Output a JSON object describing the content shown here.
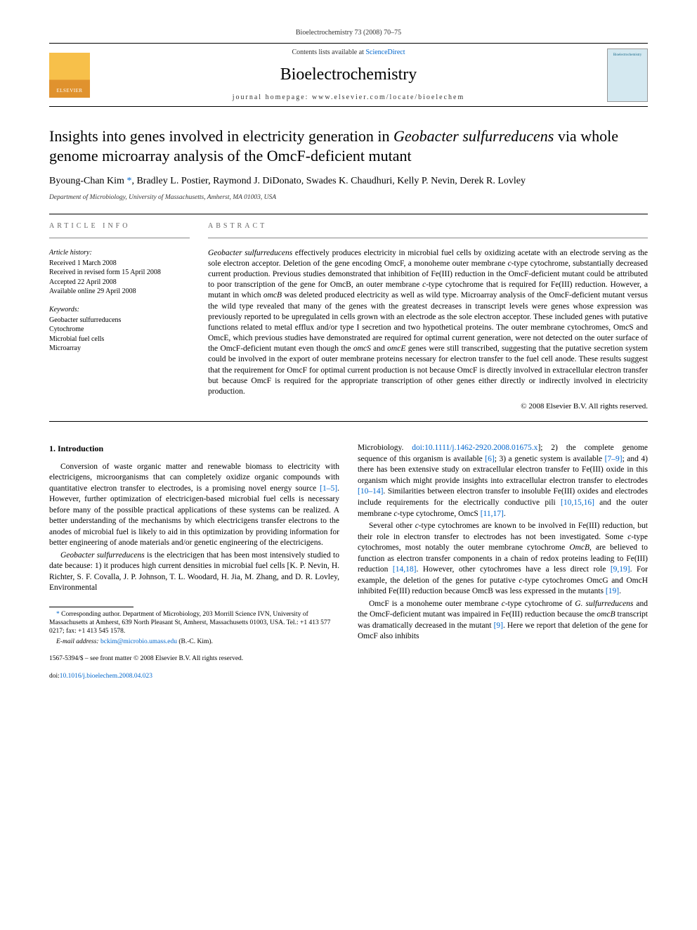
{
  "header": {
    "running_head": "Bioelectrochemistry 73 (2008) 70–75"
  },
  "banner": {
    "elsevier_label": "ELSEVIER",
    "contents_line_prefix": "Contents lists available at ",
    "contents_link_text": "ScienceDirect",
    "journal_name": "Bioelectrochemistry",
    "homepage_prefix": "journal homepage: ",
    "homepage_url": "www.elsevier.com/locate/bioelechem",
    "cover_label": "Bioelectrochemistry"
  },
  "title": {
    "line": "Insights into genes involved in electricity generation in Geobacter sulfurreducens via whole genome microarray analysis of the OmcF-deficient mutant",
    "italic_phrase": "Geobacter sulfurreducens"
  },
  "authors": {
    "list": "Byoung-Chan Kim *, Bradley L. Postier, Raymond J. DiDonato, Swades K. Chaudhuri, Kelly P. Nevin, Derek R. Lovley",
    "corr_symbol": "*"
  },
  "affiliation": "Department of Microbiology, University of Massachusetts, Amherst, MA 01003, USA",
  "article_info": {
    "heading": "ARTICLE INFO",
    "history_label": "Article history:",
    "history": [
      "Received 1 March 2008",
      "Received in revised form 15 April 2008",
      "Accepted 22 April 2008",
      "Available online 29 April 2008"
    ],
    "keywords_label": "Keywords:",
    "keywords": [
      "Geobacter sulfurreducens",
      "Cytochrome",
      "Microbial fuel cells",
      "Microarray"
    ]
  },
  "abstract": {
    "heading": "ABSTRACT",
    "text_parts": [
      "Geobacter sulfurreducens",
      " effectively produces electricity in microbial fuel cells by oxidizing acetate with an electrode serving as the sole electron acceptor. Deletion of the gene encoding OmcF, a monoheme outer membrane ",
      "c",
      "-type cytochrome, substantially decreased current production. Previous studies demonstrated that inhibition of Fe(III) reduction in the OmcF-deficient mutant could be attributed to poor transcription of the gene for OmcB, an outer membrane ",
      "c",
      "-type cytochrome that is required for Fe(III) reduction. However, a mutant in which ",
      "omcB",
      " was deleted produced electricity as well as wild type. Microarray analysis of the OmcF-deficient mutant versus the wild type revealed that many of the genes with the greatest decreases in transcript levels were genes whose expression was previously reported to be upregulated in cells grown with an electrode as the sole electron acceptor. These included genes with putative functions related to metal efflux and/or type I secretion and two hypothetical proteins. The outer membrane cytochromes, OmcS and OmcE, which previous studies have demonstrated are required for optimal current generation, were not detected on the outer surface of the OmcF-deficient mutant even though the ",
      "omcS",
      " and ",
      "omcE",
      " genes were still transcribed, suggesting that the putative secretion system could be involved in the export of outer membrane proteins necessary for electron transfer to the fuel cell anode. These results suggest that the requirement for OmcF for optimal current production is not because OmcF is directly involved in extracellular electron transfer but because OmcF is required for the appropriate transcription of other genes either directly or indirectly involved in electricity production."
    ],
    "copyright": "© 2008 Elsevier B.V. All rights reserved."
  },
  "body": {
    "section_heading": "1. Introduction",
    "col1": {
      "p1_prefix": "Conversion of waste organic matter and renewable biomass to electricity with electricigens, microorganisms that can completely oxidize organic compounds with quantitative electron transfer to electrodes, is a promising novel energy source ",
      "p1_ref1": "[1–5]",
      "p1_suffix": ". However, further optimization of electricigen-based microbial fuel cells is necessary before many of the possible practical applications of these systems can be realized. A better understanding of the mechanisms by which electricigens transfer electrons to the anodes of microbial fuel is likely to aid in this optimization by providing information for better engineering of anode materials and/or genetic engineering of the electricigens.",
      "p2_italic": "Geobacter sulfurreducens",
      "p2_text": " is the electricigen that has been most intensively studied to date because: 1) it produces high current densities in microbial fuel cells [K. P. Nevin, H. Richter, S. F. Covalla, J. P. Johnson, T. L. Woodard, H. Jia, M. Zhang, and D. R. Lovley, Environmental"
    },
    "col2": {
      "p1_prefix": "Microbiology. ",
      "p1_doi": "doi:10.1111/j.1462-2920.2008.01675.x",
      "p1_mid1": "]; 2) the complete genome sequence of this organism is available ",
      "p1_ref1": "[6]",
      "p1_mid2": "; 3) a genetic system is available ",
      "p1_ref2": "[7–9]",
      "p1_mid3": "; and 4) there has been extensive study on extracellular electron transfer to Fe(III) oxide in this organism which might provide insights into extracellular electron transfer to electrodes ",
      "p1_ref3": "[10–14]",
      "p1_mid4": ". Similarities between electron transfer to insoluble Fe(III) oxides and electrodes include requirements for the electrically conductive pili ",
      "p1_ref4": "[10,15,16]",
      "p1_mid5": " and the outer membrane ",
      "p1_italic1": "c",
      "p1_mid6": "-type cytochrome, OmcS ",
      "p1_ref5": "[11,17]",
      "p1_suffix": ".",
      "p2_prefix": "Several other ",
      "p2_italic1": "c",
      "p2_mid1": "-type cytochromes are known to be involved in Fe(III) reduction, but their role in electron transfer to electrodes has not been investigated. Some ",
      "p2_italic2": "c",
      "p2_mid2": "-type cytochromes, most notably the outer membrane cytochrome ",
      "p2_italic3": "OmcB",
      "p2_mid3": ", are believed to function as electron transfer components in a chain of redox proteins leading to Fe(III) reduction ",
      "p2_ref1": "[14,18]",
      "p2_mid4": ". However, other cytochromes have a less direct role ",
      "p2_ref2": "[9,19]",
      "p2_mid5": ". For example, the deletion of the genes for putative ",
      "p2_italic4": "c",
      "p2_mid6": "-type cytochromes OmcG and OmcH inhibited Fe(III) reduction because OmcB was less expressed in the mutants ",
      "p2_ref3": "[19]",
      "p2_suffix": ".",
      "p3_prefix": "OmcF is a monoheme outer membrane ",
      "p3_italic1": "c",
      "p3_mid1": "-type cytochrome of ",
      "p3_italic2": "G. sulfurreducens",
      "p3_mid2": " and the OmcF-deficient mutant was impaired in Fe(III) reduction because the ",
      "p3_italic3": "omcB",
      "p3_mid3": " transcript was dramatically decreased in the mutant ",
      "p3_ref1": "[9]",
      "p3_suffix": ". Here we report that deletion of the gene for OmcF also inhibits"
    }
  },
  "footnotes": {
    "corr_symbol": "*",
    "corr_text": " Corresponding author. Department of Microbiology, 203 Morrill Science IVN, University of Massachusetts at Amherst, 639 North Pleasant St, Amherst, Massachusetts 01003, USA. Tel.: +1 413 577 0217; fax: +1 413 545 1578.",
    "email_label": "E-mail address: ",
    "email": "bckim@microbio.umass.edu",
    "email_suffix": " (B.-C. Kim).",
    "issn_line": "1567-5394/$ – see front matter © 2008 Elsevier B.V. All rights reserved.",
    "doi_line_prefix": "doi:",
    "doi": "10.1016/j.bioelechem.2008.04.023"
  },
  "colors": {
    "link": "#0066cc",
    "text": "#000000",
    "meta_text": "#666666",
    "border": "#000000"
  }
}
